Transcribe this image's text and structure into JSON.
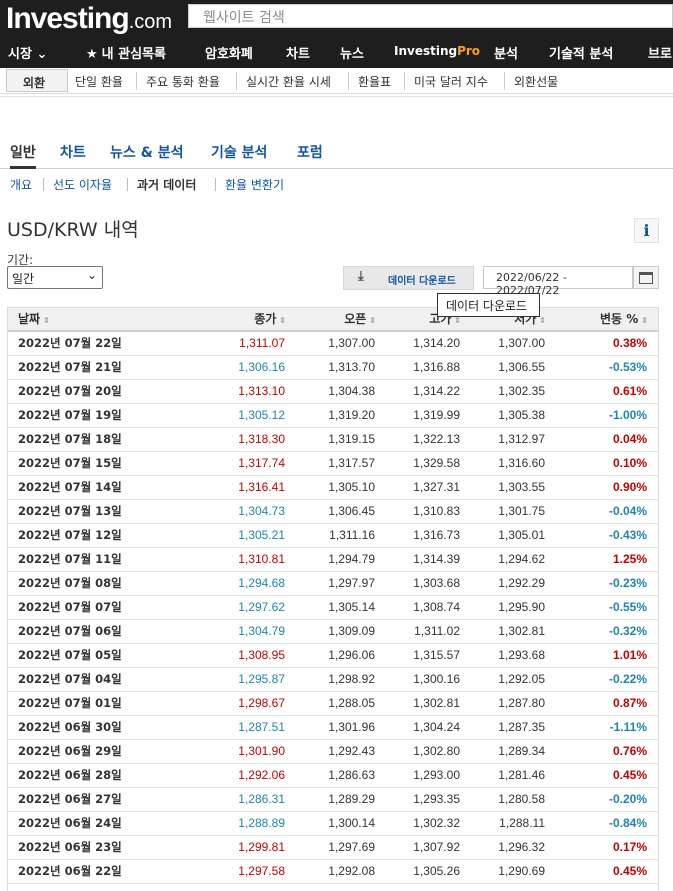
{
  "header": {
    "logo_main": "Investing",
    "logo_domain": ".com",
    "search_placeholder": "웹사이트 검색",
    "nav": [
      {
        "label": "시장",
        "chev": "⌄"
      },
      {
        "label": "내 관심목록",
        "icon": "star-icon"
      },
      {
        "label": "암호화폐"
      },
      {
        "label": "차트"
      },
      {
        "label": "뉴스"
      },
      {
        "label_a": "Investing",
        "label_b": "Pro"
      },
      {
        "label": "분석"
      },
      {
        "label": "기술적 분석"
      },
      {
        "label": "브로"
      }
    ]
  },
  "subnav": {
    "selected": "외환",
    "items": [
      "단일 환율",
      "주요 통화 환율",
      "실시간 환율 시세",
      "환율표",
      "미국 달러 지수",
      "외환선물"
    ]
  },
  "tabs": [
    "일반",
    "차트",
    "뉴스 & 분석",
    "기술 분석",
    "포럼"
  ],
  "subtabs": [
    "개요",
    "선도 이자율",
    "과거 데이터",
    "환율 변환기"
  ],
  "page_title": "USD/KRW 내역",
  "info_icon": "i",
  "period": {
    "label": "기간:",
    "value": "일간"
  },
  "download_button": "데이터 다운로드",
  "date_range": "2022/06/22 - 2022/07/22",
  "tooltip": "데이터 다운로드",
  "table": {
    "headers": [
      "날짜",
      "종가",
      "오픈",
      "고가",
      "저가",
      "변동 %"
    ],
    "sort_icon": "⇕",
    "rows": [
      {
        "date": "2022년 07월 22일",
        "close": "1,311.07",
        "open": "1,307.00",
        "high": "1,314.20",
        "low": "1,307.00",
        "chg": "0.38%",
        "dir": "up"
      },
      {
        "date": "2022년 07월 21일",
        "close": "1,306.16",
        "open": "1,313.70",
        "high": "1,316.88",
        "low": "1,306.55",
        "chg": "-0.53%",
        "dir": "down"
      },
      {
        "date": "2022년 07월 20일",
        "close": "1,313.10",
        "open": "1,304.38",
        "high": "1,314.22",
        "low": "1,302.35",
        "chg": "0.61%",
        "dir": "up"
      },
      {
        "date": "2022년 07월 19일",
        "close": "1,305.12",
        "open": "1,319.20",
        "high": "1,319.99",
        "low": "1,305.38",
        "chg": "-1.00%",
        "dir": "down"
      },
      {
        "date": "2022년 07월 18일",
        "close": "1,318.30",
        "open": "1,319.15",
        "high": "1,322.13",
        "low": "1,312.97",
        "chg": "0.04%",
        "dir": "up"
      },
      {
        "date": "2022년 07월 15일",
        "close": "1,317.74",
        "open": "1,317.57",
        "high": "1,329.58",
        "low": "1,316.60",
        "chg": "0.10%",
        "dir": "up"
      },
      {
        "date": "2022년 07월 14일",
        "close": "1,316.41",
        "open": "1,305.10",
        "high": "1,327.31",
        "low": "1,303.55",
        "chg": "0.90%",
        "dir": "up"
      },
      {
        "date": "2022년 07월 13일",
        "close": "1,304.73",
        "open": "1,306.45",
        "high": "1,310.83",
        "low": "1,301.75",
        "chg": "-0.04%",
        "dir": "down"
      },
      {
        "date": "2022년 07월 12일",
        "close": "1,305.21",
        "open": "1,311.16",
        "high": "1,316.73",
        "low": "1,305.01",
        "chg": "-0.43%",
        "dir": "down"
      },
      {
        "date": "2022년 07월 11일",
        "close": "1,310.81",
        "open": "1,294.79",
        "high": "1,314.39",
        "low": "1,294.62",
        "chg": "1.25%",
        "dir": "up"
      },
      {
        "date": "2022년 07월 08일",
        "close": "1,294.68",
        "open": "1,297.97",
        "high": "1,303.68",
        "low": "1,292.29",
        "chg": "-0.23%",
        "dir": "down"
      },
      {
        "date": "2022년 07월 07일",
        "close": "1,297.62",
        "open": "1,305.14",
        "high": "1,308.74",
        "low": "1,295.90",
        "chg": "-0.55%",
        "dir": "down"
      },
      {
        "date": "2022년 07월 06일",
        "close": "1,304.79",
        "open": "1,309.09",
        "high": "1,311.02",
        "low": "1,302.81",
        "chg": "-0.32%",
        "dir": "down"
      },
      {
        "date": "2022년 07월 05일",
        "close": "1,308.95",
        "open": "1,296.06",
        "high": "1,315.57",
        "low": "1,293.68",
        "chg": "1.01%",
        "dir": "up"
      },
      {
        "date": "2022년 07월 04일",
        "close": "1,295.87",
        "open": "1,298.92",
        "high": "1,300.16",
        "low": "1,292.05",
        "chg": "-0.22%",
        "dir": "down"
      },
      {
        "date": "2022년 07월 01일",
        "close": "1,298.67",
        "open": "1,288.05",
        "high": "1,302.81",
        "low": "1,287.80",
        "chg": "0.87%",
        "dir": "up"
      },
      {
        "date": "2022년 06월 30일",
        "close": "1,287.51",
        "open": "1,301.96",
        "high": "1,304.24",
        "low": "1,287.35",
        "chg": "-1.11%",
        "dir": "down"
      },
      {
        "date": "2022년 06월 29일",
        "close": "1,301.90",
        "open": "1,292.43",
        "high": "1,302.80",
        "low": "1,289.34",
        "chg": "0.76%",
        "dir": "up"
      },
      {
        "date": "2022년 06월 28일",
        "close": "1,292.06",
        "open": "1,286.63",
        "high": "1,293.00",
        "low": "1,281.46",
        "chg": "0.45%",
        "dir": "up"
      },
      {
        "date": "2022년 06월 27일",
        "close": "1,286.31",
        "open": "1,289.29",
        "high": "1,293.35",
        "low": "1,280.58",
        "chg": "-0.20%",
        "dir": "down"
      },
      {
        "date": "2022년 06월 24일",
        "close": "1,288.89",
        "open": "1,300.14",
        "high": "1,302.32",
        "low": "1,288.11",
        "chg": "-0.84%",
        "dir": "down"
      },
      {
        "date": "2022년 06월 23일",
        "close": "1,299.81",
        "open": "1,297.69",
        "high": "1,307.92",
        "low": "1,296.32",
        "chg": "0.17%",
        "dir": "up"
      },
      {
        "date": "2022년 06월 22일",
        "close": "1,297.58",
        "open": "1,292.08",
        "high": "1,305.26",
        "low": "1,290.69",
        "chg": "0.45%",
        "dir": "up"
      }
    ]
  },
  "colors": {
    "up": "#c80000",
    "down": "#1c85b5",
    "link": "#1256a0",
    "header_bg": "#1e1e1e",
    "pro_accent": "#f9a21b"
  }
}
